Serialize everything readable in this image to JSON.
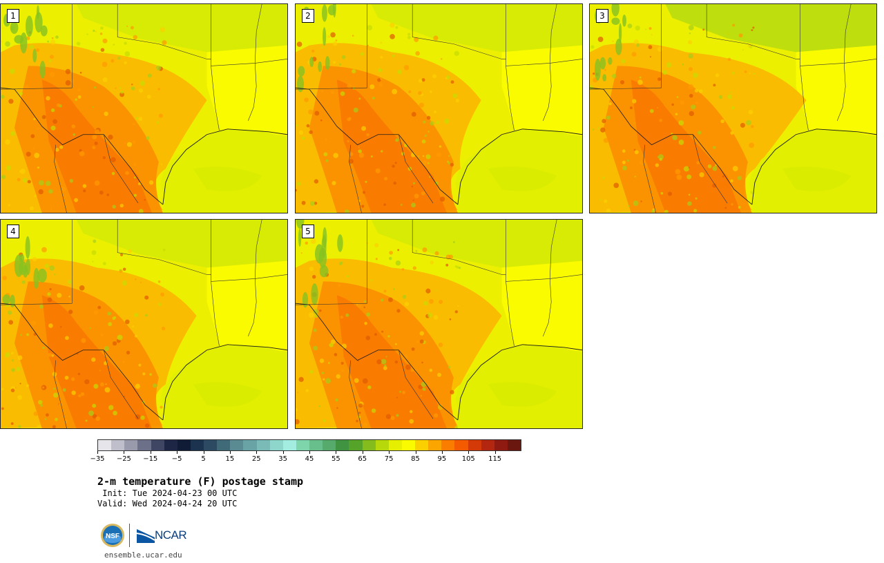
{
  "panels": [
    {
      "label": "1"
    },
    {
      "label": "2"
    },
    {
      "label": "3"
    },
    {
      "label": "4"
    },
    {
      "label": "5"
    }
  ],
  "colorbar": {
    "colors": [
      "#e6e6ea",
      "#bfbfcc",
      "#9a9aad",
      "#6c7088",
      "#3f4664",
      "#1d2645",
      "#101c36",
      "#1c3350",
      "#2c4b63",
      "#406a78",
      "#5a8a92",
      "#6aa3a6",
      "#7bbbb7",
      "#8ed5cc",
      "#a3ece0",
      "#7ed4ab",
      "#68bf8b",
      "#56ab6c",
      "#3f9341",
      "#56a32a",
      "#84bb1d",
      "#b7d80a",
      "#e6ef00",
      "#fbfb00",
      "#fbd000",
      "#fba600",
      "#fb7d00",
      "#f45a00",
      "#d33a07",
      "#b3260f",
      "#8e1a12",
      "#6a170f"
    ],
    "tick_labels": [
      "−35",
      "−25",
      "−15",
      "−5",
      "5",
      "15",
      "25",
      "35",
      "45",
      "55",
      "65",
      "75",
      "85",
      "95",
      "105",
      "115"
    ]
  },
  "title": "2-m temperature (F) postage stamp",
  "init_line": " Init: Tue 2024-04-23 00 UTC",
  "valid_line": "Valid: Wed 2024-04-24 20 UTC",
  "logos": {
    "nsf_text": "NSF",
    "ncar_text": "NCAR"
  },
  "url": "ensemble.ucar.edu"
}
